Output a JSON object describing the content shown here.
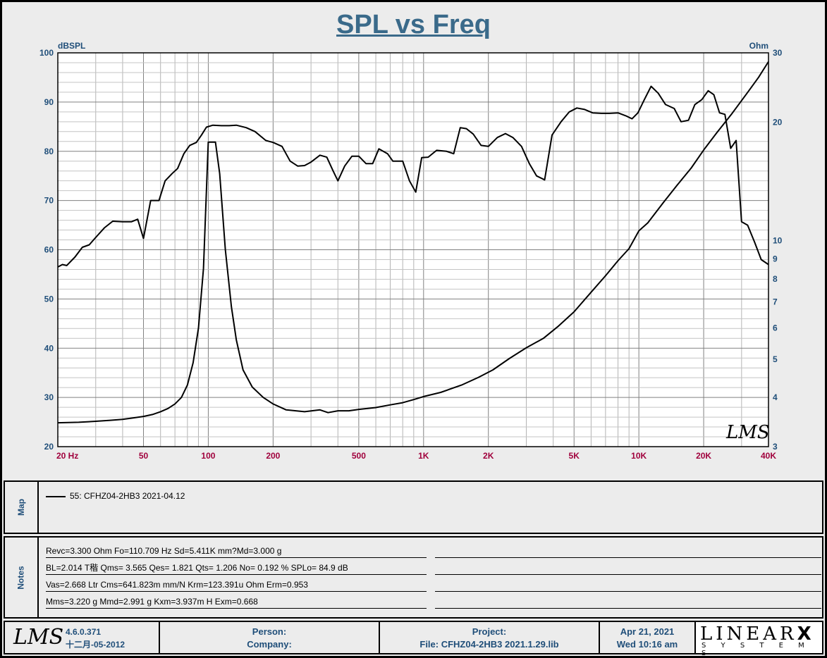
{
  "chart_title": "SPL vs Freq",
  "chart_data": {
    "type": "line",
    "title": "SPL vs Freq",
    "xscale": "log",
    "xlim": [
      20,
      40000
    ],
    "x_tick_labels": [
      {
        "f": 20,
        "label": "20  Hz"
      },
      {
        "f": 50,
        "label": "50"
      },
      {
        "f": 100,
        "label": "100"
      },
      {
        "f": 200,
        "label": "200"
      },
      {
        "f": 500,
        "label": "500"
      },
      {
        "f": 1000,
        "label": "1K"
      },
      {
        "f": 2000,
        "label": "2K"
      },
      {
        "f": 5000,
        "label": "5K"
      },
      {
        "f": 10000,
        "label": "10K"
      },
      {
        "f": 20000,
        "label": "20K"
      },
      {
        "f": 40000,
        "label": "40K"
      }
    ],
    "yleft_label": "dBSPL",
    "yleft_lim": [
      20,
      100
    ],
    "yleft_ticks": [
      20,
      30,
      40,
      50,
      60,
      70,
      80,
      90,
      100
    ],
    "yright_label": "Ohm",
    "yright_scale": "log",
    "yright_lim": [
      3,
      30
    ],
    "yright_ticks": [
      3,
      4,
      5,
      6,
      7,
      8,
      9,
      10,
      20,
      30
    ],
    "grid": true,
    "series": [
      {
        "axis": "left",
        "color": "#000000",
        "points": [
          [
            20,
            56.5
          ],
          [
            21,
            57
          ],
          [
            22,
            56.8
          ],
          [
            24,
            58.5
          ],
          [
            26,
            60.5
          ],
          [
            28,
            61
          ],
          [
            30,
            62.5
          ],
          [
            33,
            64.5
          ],
          [
            36,
            65.8
          ],
          [
            40,
            65.7
          ],
          [
            44,
            65.7
          ],
          [
            47,
            66.2
          ],
          [
            50,
            62.3
          ],
          [
            54,
            70
          ],
          [
            59,
            70
          ],
          [
            63,
            74
          ],
          [
            68,
            75.5
          ],
          [
            72,
            76.5
          ],
          [
            77,
            79.5
          ],
          [
            82,
            81.2
          ],
          [
            88,
            81.8
          ],
          [
            93,
            83.3
          ],
          [
            98,
            84.9
          ],
          [
            105,
            85.3
          ],
          [
            115,
            85.2
          ],
          [
            125,
            85.2
          ],
          [
            135,
            85.3
          ],
          [
            150,
            84.8
          ],
          [
            165,
            84
          ],
          [
            185,
            82.2
          ],
          [
            200,
            81.8
          ],
          [
            220,
            81
          ],
          [
            240,
            78
          ],
          [
            260,
            77
          ],
          [
            280,
            77.1
          ],
          [
            300,
            77.8
          ],
          [
            330,
            79.2
          ],
          [
            355,
            78.8
          ],
          [
            380,
            76
          ],
          [
            400,
            74
          ],
          [
            430,
            77
          ],
          [
            465,
            79
          ],
          [
            500,
            79
          ],
          [
            540,
            77.5
          ],
          [
            580,
            77.5
          ],
          [
            620,
            80.5
          ],
          [
            680,
            79.5
          ],
          [
            720,
            78
          ],
          [
            800,
            78
          ],
          [
            860,
            74
          ],
          [
            920,
            71.7
          ],
          [
            980,
            78.7
          ],
          [
            1050,
            78.8
          ],
          [
            1150,
            80.2
          ],
          [
            1280,
            80
          ],
          [
            1380,
            79.5
          ],
          [
            1480,
            84.8
          ],
          [
            1580,
            84.6
          ],
          [
            1700,
            83.5
          ],
          [
            1850,
            81.2
          ],
          [
            2000,
            81
          ],
          [
            2200,
            82.8
          ],
          [
            2400,
            83.6
          ],
          [
            2600,
            82.8
          ],
          [
            2850,
            81
          ],
          [
            3100,
            77.5
          ],
          [
            3350,
            75
          ],
          [
            3650,
            74.2
          ],
          [
            3950,
            83.3
          ],
          [
            4350,
            86
          ],
          [
            4750,
            88
          ],
          [
            5150,
            88.8
          ],
          [
            5600,
            88.5
          ],
          [
            6100,
            87.8
          ],
          [
            6700,
            87.7
          ],
          [
            7300,
            87.7
          ],
          [
            8000,
            87.8
          ],
          [
            8700,
            87.2
          ],
          [
            9300,
            86.6
          ],
          [
            9900,
            87.8
          ],
          [
            10600,
            90.5
          ],
          [
            11400,
            93.2
          ],
          [
            12300,
            91.8
          ],
          [
            13300,
            89.5
          ],
          [
            14600,
            88.7
          ],
          [
            15700,
            86
          ],
          [
            17000,
            86.3
          ],
          [
            18200,
            89.5
          ],
          [
            19600,
            90.5
          ],
          [
            21000,
            92.3
          ],
          [
            22300,
            91.5
          ],
          [
            23700,
            87.8
          ],
          [
            25100,
            87.5
          ],
          [
            26700,
            80.6
          ],
          [
            28300,
            82.2
          ],
          [
            30000,
            65.7
          ],
          [
            32000,
            65
          ],
          [
            34500,
            61.5
          ],
          [
            37000,
            58
          ],
          [
            40000,
            57
          ]
        ]
      },
      {
        "axis": "right",
        "color": "#000000",
        "points": [
          [
            20,
            3.45
          ],
          [
            25,
            3.46
          ],
          [
            30,
            3.48
          ],
          [
            35,
            3.5
          ],
          [
            40,
            3.52
          ],
          [
            45,
            3.55
          ],
          [
            50,
            3.58
          ],
          [
            55,
            3.62
          ],
          [
            60,
            3.68
          ],
          [
            65,
            3.75
          ],
          [
            70,
            3.85
          ],
          [
            75,
            4.0
          ],
          [
            80,
            4.3
          ],
          [
            85,
            4.9
          ],
          [
            90,
            6.0
          ],
          [
            95,
            8.5
          ],
          [
            100,
            17.8
          ],
          [
            108,
            17.8
          ],
          [
            113,
            14.8
          ],
          [
            120,
            9.5
          ],
          [
            128,
            6.8
          ],
          [
            135,
            5.6
          ],
          [
            145,
            4.7
          ],
          [
            160,
            4.25
          ],
          [
            180,
            4.0
          ],
          [
            200,
            3.85
          ],
          [
            230,
            3.72
          ],
          [
            280,
            3.68
          ],
          [
            330,
            3.72
          ],
          [
            360,
            3.66
          ],
          [
            400,
            3.7
          ],
          [
            450,
            3.7
          ],
          [
            500,
            3.73
          ],
          [
            600,
            3.77
          ],
          [
            700,
            3.83
          ],
          [
            800,
            3.88
          ],
          [
            900,
            3.95
          ],
          [
            1000,
            4.02
          ],
          [
            1200,
            4.12
          ],
          [
            1500,
            4.3
          ],
          [
            1800,
            4.5
          ],
          [
            2100,
            4.7
          ],
          [
            2500,
            5.02
          ],
          [
            3000,
            5.35
          ],
          [
            3600,
            5.65
          ],
          [
            4200,
            6.05
          ],
          [
            5000,
            6.6
          ],
          [
            6000,
            7.4
          ],
          [
            7000,
            8.15
          ],
          [
            8000,
            8.9
          ],
          [
            9000,
            9.55
          ],
          [
            10000,
            10.6
          ],
          [
            11000,
            11.1
          ],
          [
            13000,
            12.5
          ],
          [
            15000,
            13.8
          ],
          [
            17500,
            15.3
          ],
          [
            20000,
            17.0
          ],
          [
            23000,
            18.8
          ],
          [
            27000,
            21.0
          ],
          [
            32000,
            23.8
          ],
          [
            36000,
            26.0
          ],
          [
            40000,
            28.5
          ]
        ]
      }
    ]
  },
  "watermark_logo": "LMS",
  "map": {
    "label": "Map",
    "legend_entry": "55: CFHZ04-2HB3 2021-04.12"
  },
  "notes": {
    "label": "Notes",
    "lines": [
      "Revc=3.300 Ohm  Fo=110.709 Hz  Sd=5.411K mm?Md=3.000 g",
      "BL=2.014 T稭  Qms= 3.565  Qes= 1.821  Qts= 1.206  No= 0.192 %  SPLo= 84.9 dB",
      "Vas=2.668 Ltr  Cms=641.823m mm/N  Krm=123.391u Ohm  Erm=0.953",
      "Mms=3.220 g  Mmd=2.991 g  Kxm=3.937m H  Exm=0.668"
    ]
  },
  "footer": {
    "logo": "LMS",
    "version": "4.6.0.371",
    "build_date": "十二月-05-2012",
    "person_label": "Person:",
    "company_label": "Company:",
    "project_label": "Project:",
    "file_label": "File: CFHZ04-2HB3 2021.1.29.lib",
    "date": "Apr 21, 2021",
    "time": "Wed 10:16 am",
    "brand_main": "LINEAR",
    "brand_x": "X",
    "brand_sub": "S Y S T E M S"
  },
  "colors": {
    "axis_label": "#1f4e79",
    "x_tick_label": "#a0003c",
    "title": "#3a6a8a",
    "grid": "#a0a0a0"
  }
}
